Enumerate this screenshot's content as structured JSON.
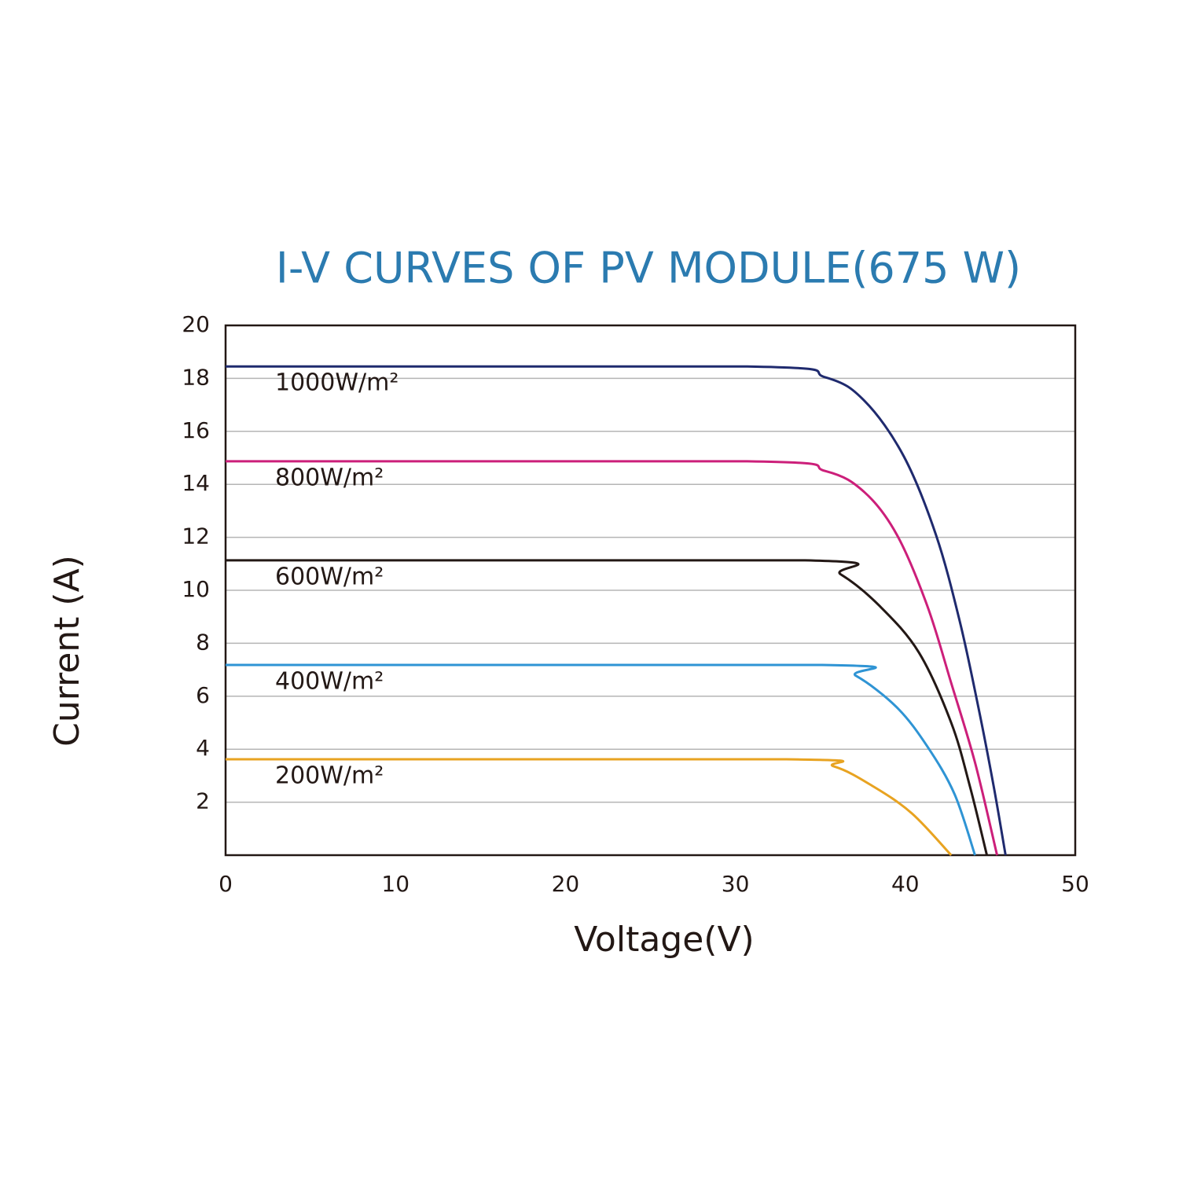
{
  "chart_data": {
    "type": "line",
    "title": "I-V CURVES OF PV MODULE(675 W)",
    "x_label": "Voltage(V)",
    "y_label": "Current  (A)",
    "xlim": [
      0,
      50
    ],
    "xticks": [
      0,
      10,
      20,
      30,
      40,
      50
    ],
    "ylim": [
      0,
      20
    ],
    "yticks": [
      2,
      4,
      6,
      8,
      10,
      12,
      14,
      16,
      18,
      20
    ],
    "grid": true,
    "series": [
      {
        "name": "1000W/m²",
        "color": "#1f2a6e",
        "x": [
          0,
          30.7,
          35.3,
          37.6,
          39.9,
          41.8,
          43.2,
          44.3,
          45.2,
          45.9
        ],
        "values": [
          18.45,
          18.45,
          18.04,
          17.15,
          15.07,
          12.1,
          8.84,
          5.58,
          2.6,
          0
        ]
      },
      {
        "name": "800W/m²",
        "color": "#cc1f7a",
        "x": [
          0,
          30.7,
          35.3,
          37.6,
          39.5,
          41.3,
          42.7,
          44.1,
          45.4
        ],
        "values": [
          14.87,
          14.87,
          14.5,
          13.7,
          12.1,
          9.4,
          6.5,
          3.5,
          0
        ]
      },
      {
        "name": "600W/m²",
        "color": "#231815",
        "x": [
          0,
          34.1,
          36.2,
          38.5,
          40.8,
          42.7,
          43.8,
          44.8
        ],
        "values": [
          11.13,
          11.13,
          10.6,
          9.4,
          7.65,
          5.0,
          2.6,
          0
        ]
      },
      {
        "name": "400W/m²",
        "color": "#2f94d4",
        "x": [
          0,
          35.1,
          37.1,
          39.5,
          41.3,
          42.9,
          44.1
        ],
        "values": [
          7.18,
          7.18,
          6.77,
          5.58,
          4.1,
          2.3,
          0
        ]
      },
      {
        "name": "200W/m²",
        "color": "#e8a321",
        "x": [
          0,
          33.0,
          35.8,
          38.1,
          40.4,
          42.7
        ],
        "values": [
          3.62,
          3.62,
          3.35,
          2.6,
          1.57,
          0
        ]
      }
    ]
  }
}
